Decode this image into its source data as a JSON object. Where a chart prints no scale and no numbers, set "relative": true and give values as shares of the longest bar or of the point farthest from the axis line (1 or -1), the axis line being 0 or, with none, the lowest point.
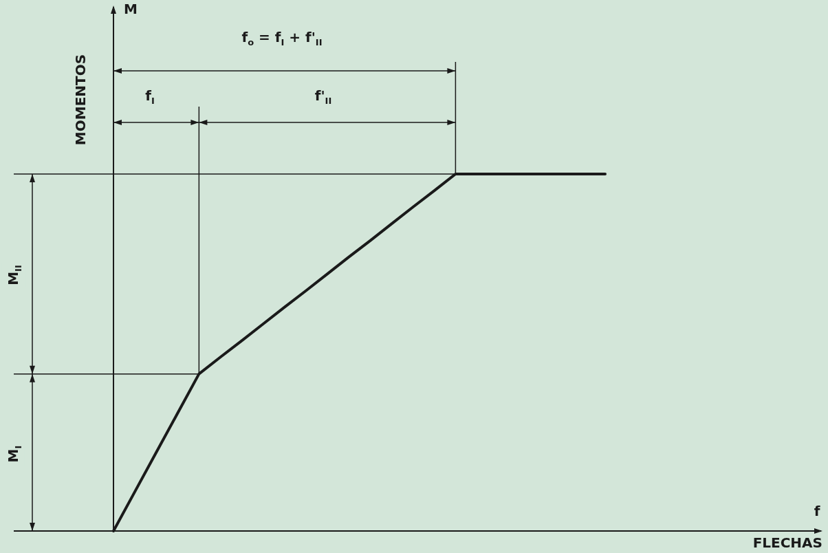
{
  "chart_data": {
    "type": "line",
    "relative": true,
    "color": "#1a1a1a",
    "ylabel": "MOMENTOS",
    "categories": [
      null,
      null,
      null,
      null,
      null,
      null,
      null,
      null,
      null,
      null,
      null,
      null,
      null,
      null,
      null,
      null,
      null,
      null,
      null,
      null,
      null,
      null,
      null,
      null
    ],
    "series": [
      {
        "color": "#1a1a1a",
        "values": [
          0,
          0.11,
          0.22,
          0.33,
          0.44,
          0.487,
          0.533,
          0.58,
          0.627,
          0.673,
          0.72,
          0.767,
          0.813,
          0.86,
          0.907,
          0.953,
          1,
          1,
          1,
          1,
          1,
          1,
          1,
          1
        ]
      }
    ],
    "ref_lines": [
      {
        "axis": "y",
        "value": 1
      },
      {
        "axis": "y",
        "value": 0.44
      }
    ],
    "annotations": [
      "M",
      "f",
      "f$_{o}$ = f$_{I}$ + f'$_{II}$",
      "f$_{I}$",
      "f'$_{II}$",
      "M$_{II}$",
      "M$_{I}$",
      "FLECHAS"
    ],
    "marker": "none",
    "line_style": "solid"
  }
}
